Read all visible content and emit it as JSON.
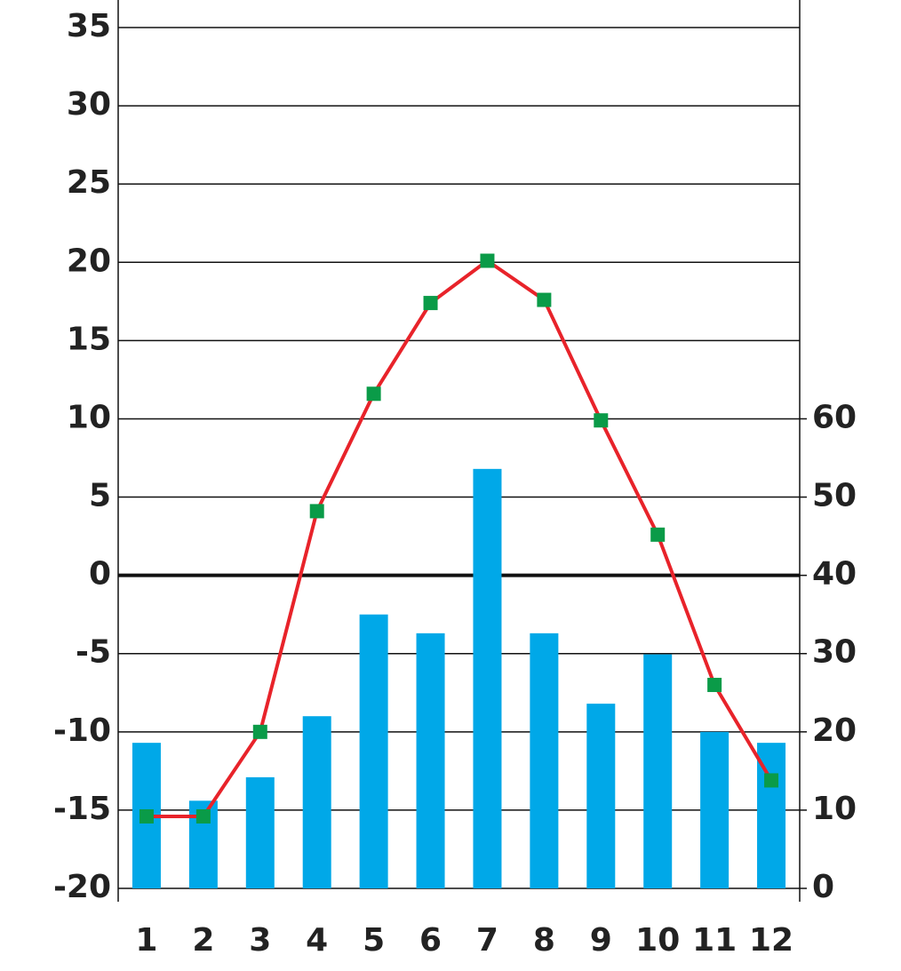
{
  "chart_data": {
    "type": "combo",
    "categories": [
      "1",
      "2",
      "3",
      "4",
      "5",
      "6",
      "7",
      "8",
      "9",
      "10",
      "11",
      "12"
    ],
    "series": [
      {
        "type": "bar",
        "axis": "y2",
        "color": "#00a8e8",
        "values": [
          18.6,
          11.2,
          14.2,
          22,
          35,
          32.6,
          53.6,
          32.6,
          23.6,
          29.9,
          20,
          18.6
        ]
      },
      {
        "type": "line",
        "color": "#e8232a",
        "marker_color": "#0a9b48",
        "values": [
          -15.4,
          -15.4,
          -10,
          4.1,
          11.6,
          17.4,
          20.1,
          17.6,
          9.9,
          2.6,
          -7,
          -13.1
        ]
      }
    ],
    "ylim": [
      -20,
      35
    ],
    "yticks": [
      -20,
      -15,
      -10,
      -5,
      0,
      5,
      10,
      15,
      20,
      25,
      30,
      35
    ],
    "y2lim": [
      0,
      110
    ],
    "y2ticks": [
      0,
      10,
      20,
      30,
      40,
      50,
      60
    ],
    "grid": true
  }
}
